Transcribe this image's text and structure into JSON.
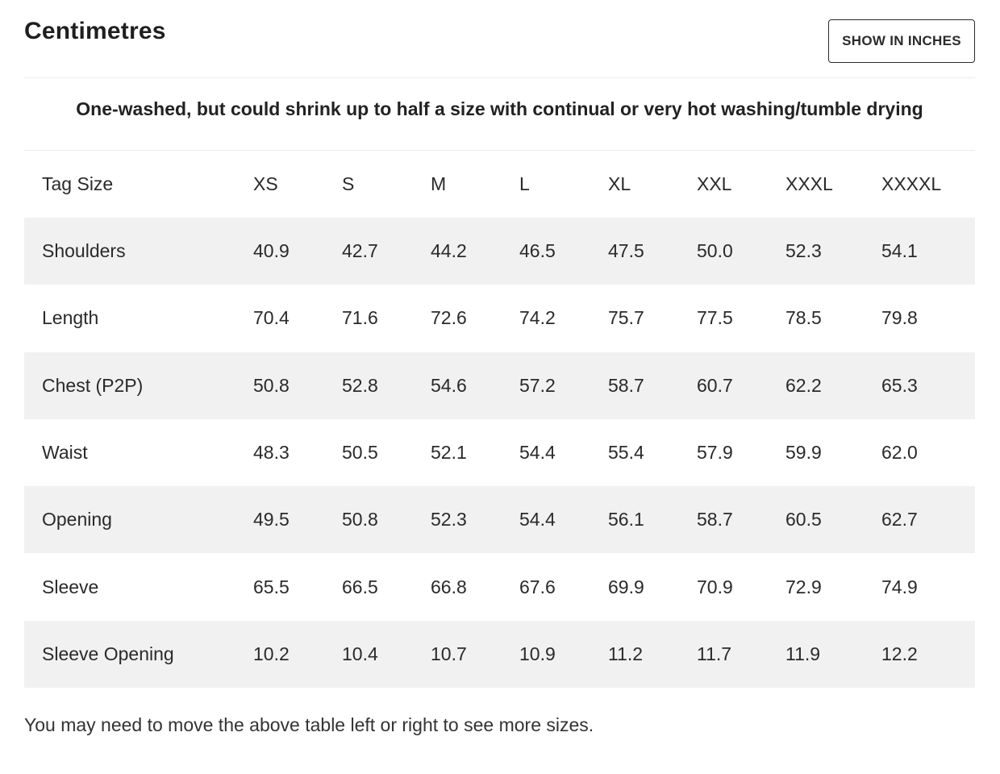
{
  "header": {
    "title": "Centimetres",
    "toggle_label": "SHOW IN INCHES"
  },
  "note": "One-washed, but could shrink up to half a size with continual or very hot washing/tumble drying",
  "table": {
    "columns": [
      "Tag Size",
      "XS",
      "S",
      "M",
      "L",
      "XL",
      "XXL",
      "XXXL",
      "XXXXL"
    ],
    "rows": [
      [
        "Shoulders",
        "40.9",
        "42.7",
        "44.2",
        "46.5",
        "47.5",
        "50.0",
        "52.3",
        "54.1"
      ],
      [
        "Length",
        "70.4",
        "71.6",
        "72.6",
        "74.2",
        "75.7",
        "77.5",
        "78.5",
        "79.8"
      ],
      [
        "Chest (P2P)",
        "50.8",
        "52.8",
        "54.6",
        "57.2",
        "58.7",
        "60.7",
        "62.2",
        "65.3"
      ],
      [
        "Waist",
        "48.3",
        "50.5",
        "52.1",
        "54.4",
        "55.4",
        "57.9",
        "59.9",
        "62.0"
      ],
      [
        "Opening",
        "49.5",
        "50.8",
        "52.3",
        "54.4",
        "56.1",
        "58.7",
        "60.5",
        "62.7"
      ],
      [
        "Sleeve",
        "65.5",
        "66.5",
        "66.8",
        "67.6",
        "69.9",
        "70.9",
        "72.9",
        "74.9"
      ],
      [
        "Sleeve Opening",
        "10.2",
        "10.4",
        "10.7",
        "10.9",
        "11.2",
        "11.7",
        "11.9",
        "12.2"
      ]
    ]
  },
  "footnote": "You may need to move the above table left or right to see more sizes.",
  "colors": {
    "stripe": "#f1f1f1",
    "text": "#222222",
    "border": "#2b2b2b"
  }
}
